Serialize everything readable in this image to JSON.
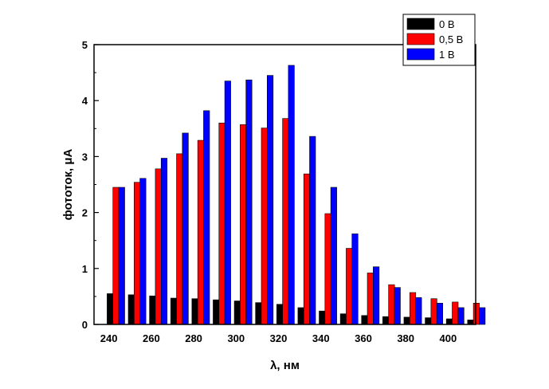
{
  "chart_data": {
    "type": "bar",
    "xlabel": "λ, нм",
    "ylabel": "фототок, μA",
    "ylim": [
      0,
      5
    ],
    "xlim": [
      233,
      413
    ],
    "x": [
      243,
      253,
      263,
      273,
      283,
      293,
      303,
      313,
      323,
      333,
      343,
      353,
      363,
      373,
      383,
      393,
      403,
      413
    ],
    "xticks": [
      "240",
      "260",
      "280",
      "300",
      "320",
      "340",
      "360",
      "380",
      "400"
    ],
    "yticks": [
      "0",
      "1",
      "2",
      "3",
      "4",
      "5"
    ],
    "legend_position": "top-right",
    "series": [
      {
        "name": "0 В",
        "color": "#000000",
        "values": [
          0.55,
          0.53,
          0.51,
          0.47,
          0.46,
          0.44,
          0.42,
          0.39,
          0.36,
          0.3,
          0.24,
          0.19,
          0.16,
          0.14,
          0.13,
          0.12,
          0.1,
          0.08
        ]
      },
      {
        "name": "0,5 В",
        "color": "#ff0000",
        "values": [
          2.45,
          2.54,
          2.78,
          3.05,
          3.29,
          3.6,
          3.57,
          3.51,
          3.68,
          2.69,
          1.98,
          1.36,
          0.92,
          0.71,
          0.57,
          0.46,
          0.4,
          0.38
        ]
      },
      {
        "name": "1 В",
        "color": "#0000ff",
        "values": [
          2.45,
          2.61,
          2.97,
          3.42,
          3.82,
          4.35,
          4.37,
          4.45,
          4.63,
          3.36,
          2.45,
          1.62,
          1.03,
          0.66,
          0.48,
          0.38,
          0.3,
          0.3
        ]
      }
    ]
  }
}
